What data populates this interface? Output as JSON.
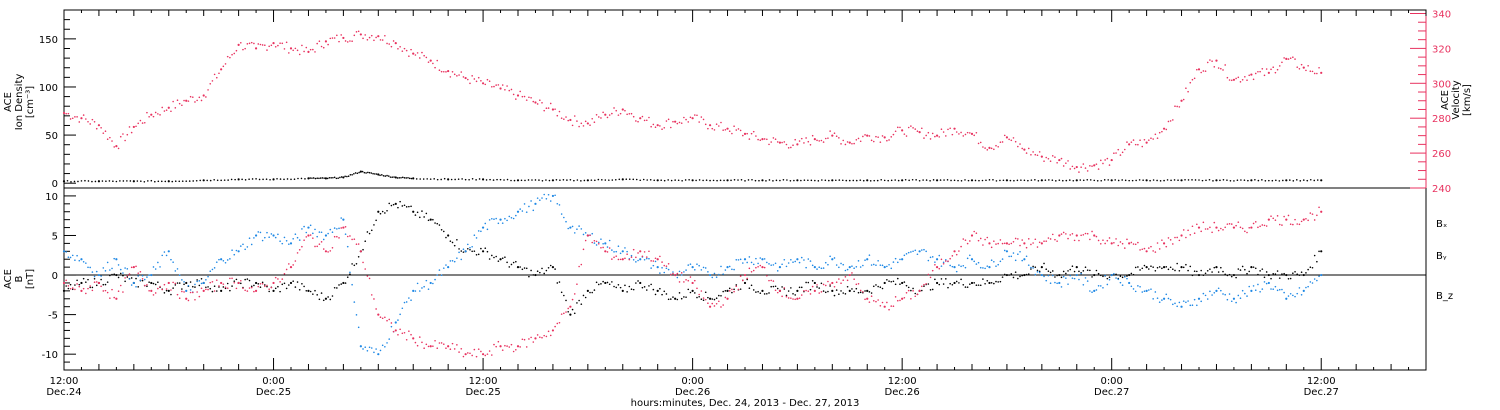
{
  "colors": {
    "density": "#000000",
    "velocity": "#e8325f",
    "bx": "#000000",
    "by": "#1e88e5",
    "bz": "#e8325f"
  },
  "top_panel": {
    "left_label": [
      "ACE",
      "Ion Density",
      "[cm⁻³]"
    ],
    "right_label": [
      "ACE",
      "Velocity",
      "[km/s]"
    ]
  },
  "bottom_panel": {
    "left_label": [
      "ACE",
      "B",
      "[nT]"
    ],
    "legend": [
      "Bₓ",
      "Bᵧ",
      "B_z"
    ]
  },
  "x_axis": {
    "title": "hours:minutes, Dec. 24, 2013 - Dec. 27, 2013",
    "ticks": [
      {
        "h": 0,
        "l1": "12:00",
        "l2": "Dec.24"
      },
      {
        "h": 12,
        "l1": "0:00",
        "l2": "Dec.25"
      },
      {
        "h": 24,
        "l1": "12:00",
        "l2": "Dec.25"
      },
      {
        "h": 36,
        "l1": "0:00",
        "l2": "Dec.26"
      },
      {
        "h": 48,
        "l1": "12:00",
        "l2": "Dec.26"
      },
      {
        "h": 60,
        "l1": "0:00",
        "l2": "Dec.27"
      },
      {
        "h": 72,
        "l1": "12:00",
        "l2": "Dec.27"
      }
    ]
  },
  "chart_data": [
    {
      "type": "scatter",
      "panel": "top",
      "xlim_hours": [
        0,
        78
      ],
      "x_start": "Dec. 24, 2013 12:00",
      "left_axis": {
        "ylim": [
          -5,
          180
        ],
        "ticks": [
          0,
          50,
          100,
          150
        ]
      },
      "right_axis": {
        "ylim": [
          240,
          342
        ],
        "ticks": [
          240,
          260,
          280,
          300,
          320,
          340
        ]
      },
      "series": [
        {
          "axis": "left",
          "x": [
            0,
            2,
            4,
            6,
            8,
            10,
            12,
            14,
            15,
            16,
            17,
            18,
            19,
            20,
            22,
            24,
            26,
            28,
            30,
            32,
            34,
            36,
            38,
            40,
            42,
            44,
            46,
            48,
            50,
            52,
            54,
            56,
            58,
            60,
            62,
            64,
            66,
            68,
            70,
            72
          ],
          "y": [
            2,
            2,
            2,
            2,
            3,
            4,
            4,
            5,
            5,
            6,
            12,
            9,
            6,
            5,
            4,
            4,
            3,
            3,
            3,
            4,
            3,
            3,
            3,
            3,
            3,
            3,
            3,
            3,
            3,
            3,
            3,
            3,
            3,
            3,
            3,
            3,
            3,
            3,
            3,
            3
          ]
        },
        {
          "axis": "right",
          "x": [
            0,
            1,
            2,
            3,
            4,
            5,
            6,
            7,
            8,
            9,
            10,
            11,
            12,
            13,
            14,
            15,
            16,
            17,
            18,
            19,
            20,
            21,
            22,
            23,
            24,
            25,
            26,
            27,
            28,
            29,
            30,
            31,
            32,
            33,
            34,
            35,
            36,
            37,
            38,
            39,
            40,
            41,
            42,
            43,
            44,
            45,
            46,
            47,
            48,
            49,
            50,
            51,
            52,
            53,
            54,
            55,
            56,
            57,
            58,
            59,
            60,
            61,
            62,
            63,
            64,
            65,
            66,
            67,
            68,
            69,
            70,
            71,
            72
          ],
          "y": [
            283,
            280,
            276,
            264,
            275,
            282,
            286,
            290,
            293,
            308,
            322,
            320,
            323,
            320,
            318,
            324,
            326,
            328,
            327,
            323,
            317,
            313,
            307,
            303,
            300,
            297,
            293,
            289,
            285,
            279,
            277,
            282,
            285,
            280,
            276,
            278,
            280,
            276,
            274,
            271,
            268,
            266,
            265,
            268,
            270,
            266,
            270,
            269,
            273,
            272,
            270,
            274,
            271,
            263,
            269,
            262,
            258,
            256,
            252,
            253,
            256,
            265,
            266,
            274,
            290,
            308,
            313,
            302,
            305,
            306,
            314,
            309,
            306
          ]
        }
      ]
    },
    {
      "type": "scatter",
      "panel": "bottom",
      "xlim_hours": [
        0,
        78
      ],
      "x_start": "Dec. 24, 2013 12:00",
      "ylim": [
        -12,
        11
      ],
      "yticks": [
        -10,
        -5,
        0,
        5,
        10
      ],
      "series": [
        {
          "x": [
            0,
            1,
            2,
            3,
            4,
            5,
            6,
            7,
            8,
            9,
            10,
            11,
            12,
            13,
            14,
            15,
            16,
            17,
            18,
            19,
            20,
            21,
            22,
            23,
            24,
            25,
            26,
            27,
            28,
            29,
            30,
            31,
            32,
            33,
            34,
            35,
            36,
            37,
            38,
            39,
            40,
            41,
            42,
            43,
            44,
            45,
            46,
            47,
            48,
            49,
            50,
            51,
            52,
            53,
            54,
            55,
            56,
            57,
            58,
            59,
            60,
            61,
            62,
            63,
            64,
            65,
            66,
            67,
            68,
            69,
            70,
            71,
            72
          ],
          "y": [
            -2,
            -1,
            -1,
            0,
            -1,
            -1,
            -2,
            -1,
            -1,
            -2,
            -1,
            -1,
            -2,
            -1,
            -2,
            -3,
            -1,
            3,
            8,
            9,
            8,
            7,
            5,
            3,
            3,
            2,
            1,
            0,
            1,
            -5,
            -2,
            -1,
            -2,
            -1,
            -2,
            -3,
            -2,
            -3,
            -2,
            -1,
            -2,
            -2,
            -2,
            -1,
            -2,
            -2,
            -2,
            -1,
            -1,
            -2,
            -1,
            -1,
            -1,
            -1,
            0,
            0,
            1,
            0,
            1,
            0,
            0,
            0,
            1,
            1,
            1,
            0,
            1,
            0,
            1,
            0,
            0,
            0,
            3
          ]
        },
        {
          "x": [
            0,
            1,
            2,
            3,
            4,
            5,
            6,
            7,
            8,
            9,
            10,
            11,
            12,
            13,
            14,
            15,
            16,
            17,
            18,
            19,
            20,
            21,
            22,
            23,
            24,
            25,
            26,
            27,
            28,
            29,
            30,
            31,
            32,
            33,
            34,
            35,
            36,
            37,
            38,
            39,
            40,
            41,
            42,
            43,
            44,
            45,
            46,
            47,
            48,
            49,
            50,
            51,
            52,
            53,
            54,
            55,
            56,
            57,
            58,
            59,
            60,
            61,
            62,
            63,
            64,
            65,
            66,
            67,
            68,
            69,
            70,
            71,
            72
          ],
          "y": [
            3,
            2,
            0,
            2,
            -1,
            0,
            3,
            -2,
            -1,
            2,
            3,
            5,
            5,
            4,
            6,
            5,
            7,
            -9,
            -10,
            -6,
            -2,
            -1,
            1,
            3,
            6,
            7,
            8,
            9,
            10,
            6,
            5,
            4,
            3,
            2,
            1,
            0,
            1,
            0,
            1,
            2,
            2,
            1,
            2,
            1,
            2,
            1,
            2,
            1,
            2,
            3,
            2,
            1,
            2,
            1,
            3,
            2,
            0,
            -1,
            0,
            -2,
            0,
            -1,
            -2,
            -3,
            -4,
            -3,
            -2,
            -3,
            -2,
            -1,
            -3,
            -2,
            0
          ]
        },
        {
          "x": [
            0,
            1,
            2,
            3,
            4,
            5,
            6,
            7,
            8,
            9,
            10,
            11,
            12,
            13,
            14,
            15,
            16,
            17,
            18,
            19,
            20,
            21,
            22,
            23,
            24,
            25,
            26,
            27,
            28,
            29,
            30,
            31,
            32,
            33,
            34,
            35,
            36,
            37,
            38,
            39,
            40,
            41,
            42,
            43,
            44,
            45,
            46,
            47,
            48,
            49,
            50,
            51,
            52,
            53,
            54,
            55,
            56,
            57,
            58,
            59,
            60,
            61,
            62,
            63,
            64,
            65,
            66,
            67,
            68,
            69,
            70,
            71,
            72
          ],
          "y": [
            -1,
            -2,
            -1,
            -3,
            1,
            -2,
            -1,
            -3,
            -2,
            -1,
            -1,
            -2,
            -1,
            1,
            5,
            3,
            6,
            3,
            -5,
            -7,
            -8,
            -9,
            -9,
            -10,
            -10,
            -9,
            -9,
            -8,
            -7,
            -4,
            5,
            3,
            2,
            3,
            2,
            0,
            -1,
            -4,
            -3,
            0,
            1,
            -2,
            -3,
            -2,
            -1,
            0,
            -3,
            -4,
            -3,
            -2,
            1,
            3,
            5,
            4,
            4,
            4,
            4,
            5,
            5,
            5,
            4,
            4,
            3,
            4,
            5,
            6,
            6,
            6,
            6,
            7,
            7,
            7,
            8
          ]
        }
      ]
    }
  ]
}
